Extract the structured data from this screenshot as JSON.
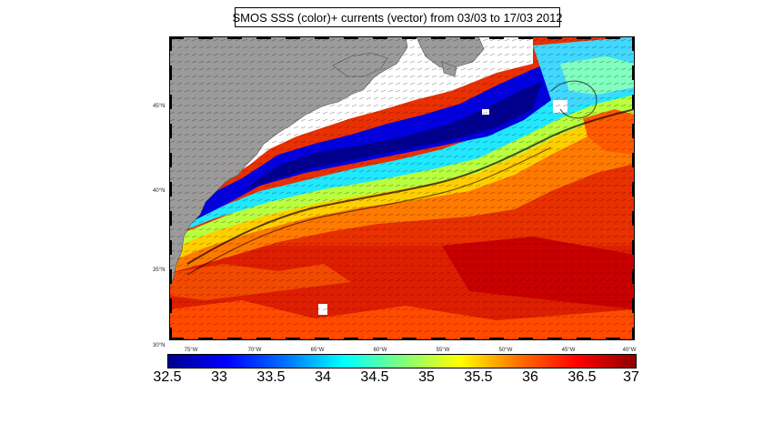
{
  "title": "SMOS SSS (color)+ currents (vector) from 03/03 to 17/03 2012",
  "lat_labels": [
    "45°N",
    "40°N",
    "35°N",
    "30°N"
  ],
  "lon_labels": [
    "75°W",
    "70°W",
    "65°W",
    "60°W",
    "55°W",
    "50°W",
    "45°W",
    "40°W"
  ],
  "colorbar": {
    "ticks": [
      "32.5",
      "33",
      "33.5",
      "34",
      "34.5",
      "35",
      "35.5",
      "36",
      "36.5",
      "37"
    ],
    "range": [
      32.5,
      37
    ],
    "colormap": [
      "#00008f",
      "#0000ff",
      "#0070ff",
      "#00ffff",
      "#7fff7f",
      "#ffff00",
      "#ff7000",
      "#ff0000",
      "#8f0000"
    ]
  },
  "map": {
    "lon_range": [
      -77,
      -40
    ],
    "lat_range": [
      30,
      48
    ],
    "land_color": "#9b9b9b",
    "missing_color": "#ffffff"
  }
}
